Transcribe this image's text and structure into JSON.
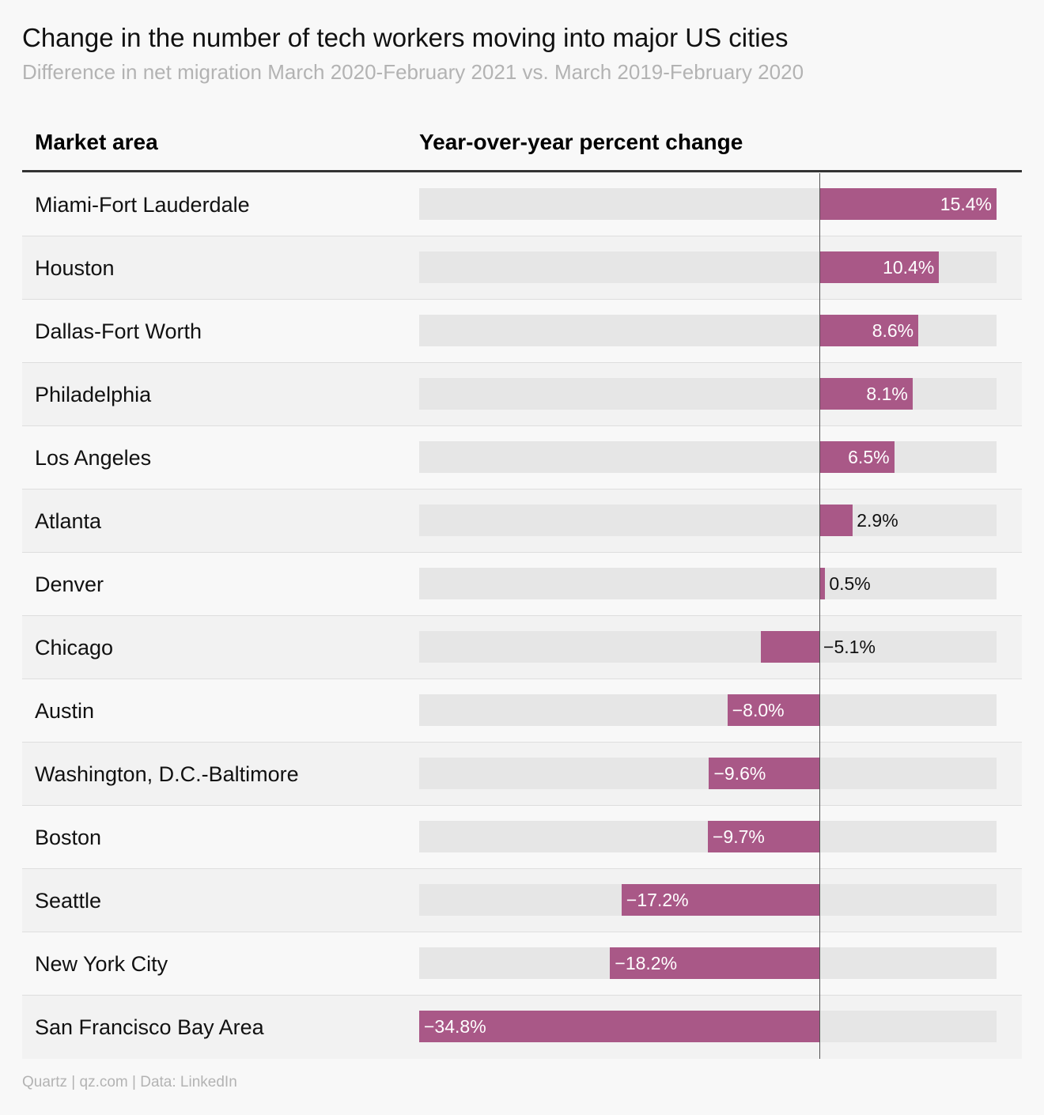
{
  "title": "Change in the number of tech workers moving into major US cities",
  "subtitle": "Difference in net migration March 2020-February 2021 vs. March 2019-February 2020",
  "headers": {
    "market": "Market area",
    "change": "Year-over-year percent change"
  },
  "footer": "Quartz | qz.com | Data: LinkedIn",
  "colors": {
    "bar": "#a95887",
    "track": "#e6e6e6",
    "label_inside": "#ffffff",
    "label_outside": "#111111"
  },
  "chart_data": {
    "type": "bar",
    "orientation": "horizontal",
    "title": "Change in the number of tech workers moving into major US cities",
    "subtitle": "Difference in net migration March 2020-February 2021 vs. March 2019-February 2020",
    "xlabel": "Year-over-year percent change",
    "ylabel": "Market area",
    "xlim": [
      -34.8,
      15.4
    ],
    "unit": "%",
    "categories": [
      "Miami-Fort Lauderdale",
      "Houston",
      "Dallas-Fort Worth",
      "Philadelphia",
      "Los Angeles",
      "Atlanta",
      "Denver",
      "Chicago",
      "Austin",
      "Washington, D.C.-Baltimore",
      "Boston",
      "Seattle",
      "New York City",
      "San Francisco Bay Area"
    ],
    "values": [
      15.4,
      10.4,
      8.6,
      8.1,
      6.5,
      2.9,
      0.5,
      -5.1,
      -8.0,
      -9.6,
      -9.7,
      -17.2,
      -18.2,
      -34.8
    ],
    "data_labels": [
      "15.4%",
      "10.4%",
      "8.6%",
      "8.1%",
      "6.5%",
      "2.9%",
      "0.5%",
      "−5.1%",
      "−8.0%",
      "−9.6%",
      "−9.7%",
      "−17.2%",
      "−18.2%",
      "−34.8%"
    ]
  }
}
